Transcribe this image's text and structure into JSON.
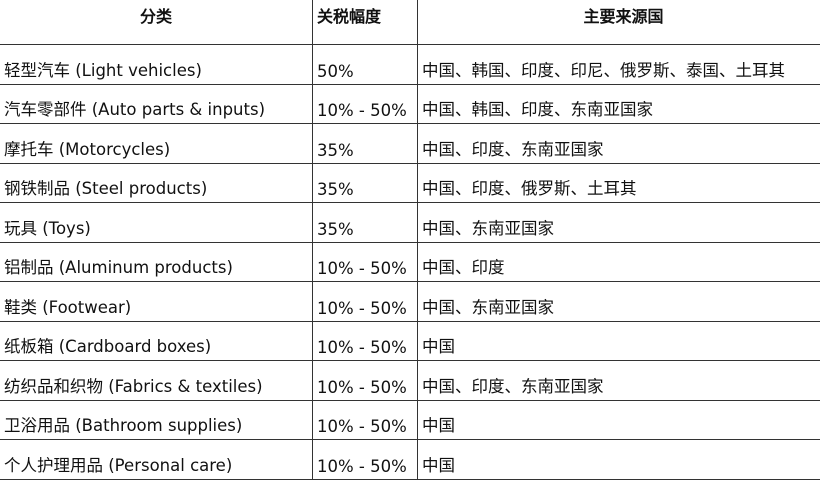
{
  "headers": [
    "分类",
    "关税幅度",
    "主要来源国"
  ],
  "rows": [
    [
      "轻型汽车 (Light vehicles)",
      "50%",
      "中国、韩国、印度、印尼、俄罗斯、泰国、土耳其"
    ],
    [
      "汽车零部件 (Auto parts & inputs)",
      "10% - 50%",
      "中国、韩国、印度、东南亚国家"
    ],
    [
      "摩托车 (Motorcycles)",
      "35%",
      "中国、印度、东南亚国家"
    ],
    [
      "钢铁制品 (Steel products)",
      "35%",
      "中国、印度、俄罗斯、土耳其"
    ],
    [
      "玩具 (Toys)",
      "35%",
      "中国、东南亚国家"
    ],
    [
      "铝制品 (Aluminum products)",
      "10% - 50%",
      "中国、印度"
    ],
    [
      "鞋类 (Footwear)",
      "10% - 50%",
      "中国、东南亚国家"
    ],
    [
      "纸板箱 (Cardboard boxes)",
      "10% - 50%",
      "中国"
    ],
    [
      "纺织品和织物 (Fabrics & textiles)",
      "10% - 50%",
      "中国、印度、东南亚国家"
    ],
    [
      "卫浴用品 (Bathroom supplies)",
      "10% - 50%",
      "中国"
    ],
    [
      "个人护理用品 (Personal care)",
      "10% - 50%",
      "中国"
    ]
  ]
}
